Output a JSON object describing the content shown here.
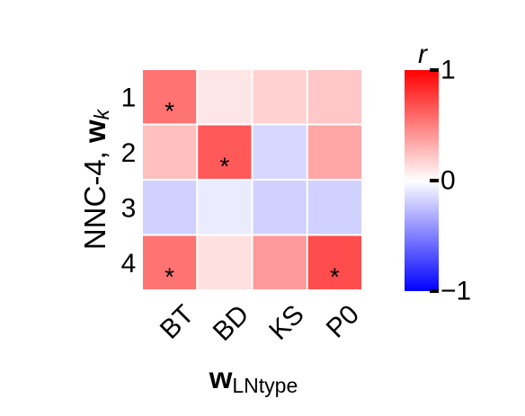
{
  "chart_data": {
    "type": "heatmap",
    "x_categories": [
      "BT",
      "BD",
      "KS",
      "P0"
    ],
    "y_categories": [
      "1",
      "2",
      "3",
      "4"
    ],
    "values": [
      [
        0.55,
        0.1,
        0.18,
        0.22
      ],
      [
        0.25,
        0.65,
        -0.16,
        0.35
      ],
      [
        -0.18,
        -0.08,
        -0.18,
        -0.18
      ],
      [
        0.55,
        0.12,
        0.4,
        0.7
      ]
    ],
    "significant": [
      [
        true,
        false,
        false,
        false
      ],
      [
        false,
        true,
        false,
        false
      ],
      [
        false,
        false,
        false,
        false
      ],
      [
        true,
        false,
        false,
        true
      ]
    ],
    "marker": "*",
    "ylabel_main": "NNC-4, ",
    "ylabel_bold": "w",
    "ylabel_sub": "k",
    "xlabel_bold": "w",
    "xlabel_sub": "LNtype",
    "colorbar": {
      "label": "r",
      "range": [
        -1,
        1
      ],
      "ticks": [
        "1",
        "0",
        "−1"
      ],
      "colors": {
        "low": "#0000ff",
        "mid": "#ffffff",
        "high": "#ff0000"
      }
    }
  }
}
